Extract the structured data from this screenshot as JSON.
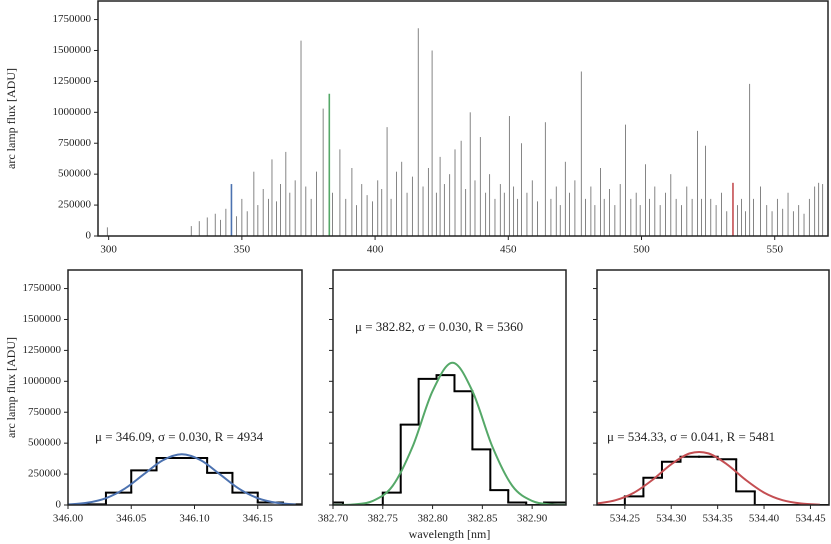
{
  "chart_data": [
    {
      "type": "spectrum",
      "ylabel": "arc lamp flux [ADU]",
      "xlim": [
        296,
        570
      ],
      "ylim": [
        0,
        1900000
      ],
      "xticks": [
        300,
        350,
        400,
        450,
        500,
        550
      ],
      "yticks": [
        0,
        250000,
        500000,
        750000,
        1000000,
        1250000,
        1500000,
        1750000
      ],
      "series": [
        {
          "color": "#333333",
          "x": [
            299.5,
            331,
            334,
            337,
            340,
            342,
            344,
            348,
            350,
            352,
            354.5,
            356,
            358,
            360,
            361.3,
            363,
            364.5,
            366.5,
            368,
            370,
            372.2,
            374,
            376,
            378,
            380.5,
            384,
            386.8,
            389,
            391.3,
            393,
            395,
            397,
            399,
            401,
            402.5,
            404.5,
            406,
            408,
            410,
            412,
            414,
            416.2,
            418,
            420,
            421.4,
            423,
            424.4,
            426,
            428,
            430,
            432.3,
            434,
            435.7,
            437.5,
            439.5,
            441.5,
            443,
            445,
            447,
            448.5,
            450.4,
            452,
            453.5,
            455,
            457,
            459,
            461,
            463.9,
            466,
            468,
            469.5,
            471.4,
            473,
            475,
            477.4,
            479,
            481,
            482.5,
            484.6,
            486,
            488,
            490,
            492,
            494,
            496,
            498,
            499.5,
            501.5,
            503,
            505,
            507,
            509,
            511,
            513,
            515,
            517,
            519,
            521,
            522.5,
            524,
            526,
            528,
            530,
            532,
            536,
            537.5,
            539,
            540.6,
            542,
            544.7,
            547,
            549,
            551,
            553,
            555,
            557,
            559,
            561,
            563,
            565,
            566.5,
            568
          ],
          "values": [
            70000,
            80000,
            120000,
            150000,
            180000,
            130000,
            220000,
            160000,
            300000,
            200000,
            520000,
            250000,
            380000,
            300000,
            620000,
            280000,
            420000,
            680000,
            350000,
            450000,
            1580000,
            400000,
            300000,
            520000,
            1030000,
            350000,
            700000,
            300000,
            550000,
            250000,
            420000,
            330000,
            280000,
            450000,
            380000,
            880000,
            300000,
            520000,
            600000,
            350000,
            480000,
            1680000,
            400000,
            550000,
            1500000,
            350000,
            640000,
            420000,
            500000,
            700000,
            770000,
            380000,
            1000000,
            450000,
            800000,
            350000,
            500000,
            300000,
            420000,
            350000,
            970000,
            400000,
            300000,
            750000,
            350000,
            450000,
            280000,
            920000,
            300000,
            400000,
            250000,
            600000,
            350000,
            450000,
            1330000,
            300000,
            400000,
            250000,
            550000,
            300000,
            380000,
            250000,
            420000,
            900000,
            300000,
            350000,
            250000,
            580000,
            300000,
            400000,
            250000,
            350000,
            500000,
            300000,
            250000,
            400000,
            300000,
            850000,
            300000,
            730000,
            300000,
            250000,
            350000,
            200000,
            250000,
            300000,
            200000,
            1230000,
            300000,
            400000,
            250000,
            200000,
            300000,
            220000,
            350000,
            200000,
            250000,
            180000,
            300000,
            400000,
            430000,
            420000
          ]
        },
        {
          "color": "#4c72b0",
          "x": [
            346.09
          ],
          "values": [
            420000
          ]
        },
        {
          "color": "#55a868",
          "x": [
            382.82
          ],
          "values": [
            1150000
          ]
        },
        {
          "color": "#c44e52",
          "x": [
            534.33
          ],
          "values": [
            430000
          ]
        }
      ]
    },
    {
      "type": "histogram",
      "ylabel": "arc lamp flux [ADU]",
      "annotation": "μ = 346.09, σ = 0.030, R = 4934",
      "xlim": [
        346.0,
        346.185
      ],
      "ylim": [
        0,
        1900000
      ],
      "xticks": [
        {
          "value": 346.0,
          "label": "346.00"
        },
        346.05,
        {
          "value": 346.1,
          "label": "346.10"
        },
        346.15
      ],
      "yticks": [
        0,
        250000,
        500000,
        750000,
        1000000,
        1250000,
        1500000,
        1750000
      ],
      "color": "#000000",
      "bins": [
        346.01,
        346.03,
        346.05,
        346.07,
        346.09,
        346.11,
        346.13,
        346.15,
        346.17,
        346.19
      ],
      "counts": [
        5000,
        100000,
        280000,
        380000,
        380000,
        260000,
        100000,
        20000,
        5000
      ],
      "curve": {
        "color": "#4c72b0",
        "x": [
          346.0,
          346.015,
          346.03,
          346.045,
          346.06,
          346.075,
          346.09,
          346.105,
          346.12,
          346.135,
          346.15,
          346.165,
          346.18
        ],
        "values": [
          4550,
          18000,
          55500,
          133000,
          249000,
          362000,
          410000,
          362000,
          249000,
          133000,
          55500,
          18000,
          4550
        ]
      }
    },
    {
      "type": "histogram",
      "xlabel": "wavelength [nm]",
      "annotation": "μ = 382.82, σ = 0.030, R = 5360",
      "xlim": [
        382.7,
        382.934
      ],
      "ylim": [
        0,
        1900000
      ],
      "xticks": [
        {
          "value": 382.7,
          "label": "382.70"
        },
        382.75,
        {
          "value": 382.8,
          "label": "382.80"
        },
        382.85,
        {
          "value": 382.9,
          "label": "382.90"
        }
      ],
      "yticks": [
        0,
        250000,
        500000,
        750000,
        1000000,
        1250000,
        1500000,
        1750000
      ],
      "color": "#000000",
      "bins": [
        382.69,
        382.71,
        382.73,
        382.75,
        382.768,
        382.786,
        382.804,
        382.822,
        382.84,
        382.858,
        382.876,
        382.894,
        382.912,
        382.94
      ],
      "counts": [
        20000,
        0,
        0,
        100000,
        650000,
        1020000,
        1050000,
        920000,
        450000,
        120000,
        20000,
        0,
        20000
      ],
      "curve": {
        "color": "#55a868",
        "x": [
          382.7,
          382.72,
          382.74,
          382.76,
          382.78,
          382.8,
          382.82,
          382.84,
          382.86,
          382.88,
          382.9,
          382.92,
          382.94
        ],
        "values": [
          390,
          4440,
          32900,
          155600,
          472700,
          920900,
          1150000,
          920900,
          472700,
          155600,
          32900,
          4440,
          390
        ]
      }
    },
    {
      "type": "histogram",
      "annotation": "μ = 534.33, σ = 0.041, R = 5481",
      "xlim": [
        534.22,
        534.47
      ],
      "ylim": [
        0,
        1900000
      ],
      "xticks": [
        534.25,
        {
          "value": 534.3,
          "label": "534.30"
        },
        534.35,
        {
          "value": 534.4,
          "label": "534.40"
        },
        534.45
      ],
      "yticks": [
        0,
        250000,
        500000,
        750000,
        1000000,
        1250000,
        1500000,
        1750000
      ],
      "color": "#000000",
      "bins": [
        534.21,
        534.23,
        534.25,
        534.27,
        534.29,
        534.31,
        534.33,
        534.35,
        534.37,
        534.39,
        534.41,
        534.43,
        534.45,
        534.47
      ],
      "counts": [
        0,
        0,
        70000,
        220000,
        350000,
        390000,
        390000,
        370000,
        110000,
        0,
        0,
        0,
        0
      ],
      "curve": {
        "color": "#c44e52",
        "x": [
          534.22,
          534.24,
          534.26,
          534.28,
          534.3,
          534.32,
          534.34,
          534.36,
          534.38,
          534.4,
          534.42,
          534.44,
          534.46
        ],
        "values": [
          11700,
          38600,
          100200,
          204300,
          329000,
          417500,
          417500,
          329000,
          204300,
          100200,
          38600,
          11700,
          2800
        ]
      }
    }
  ]
}
